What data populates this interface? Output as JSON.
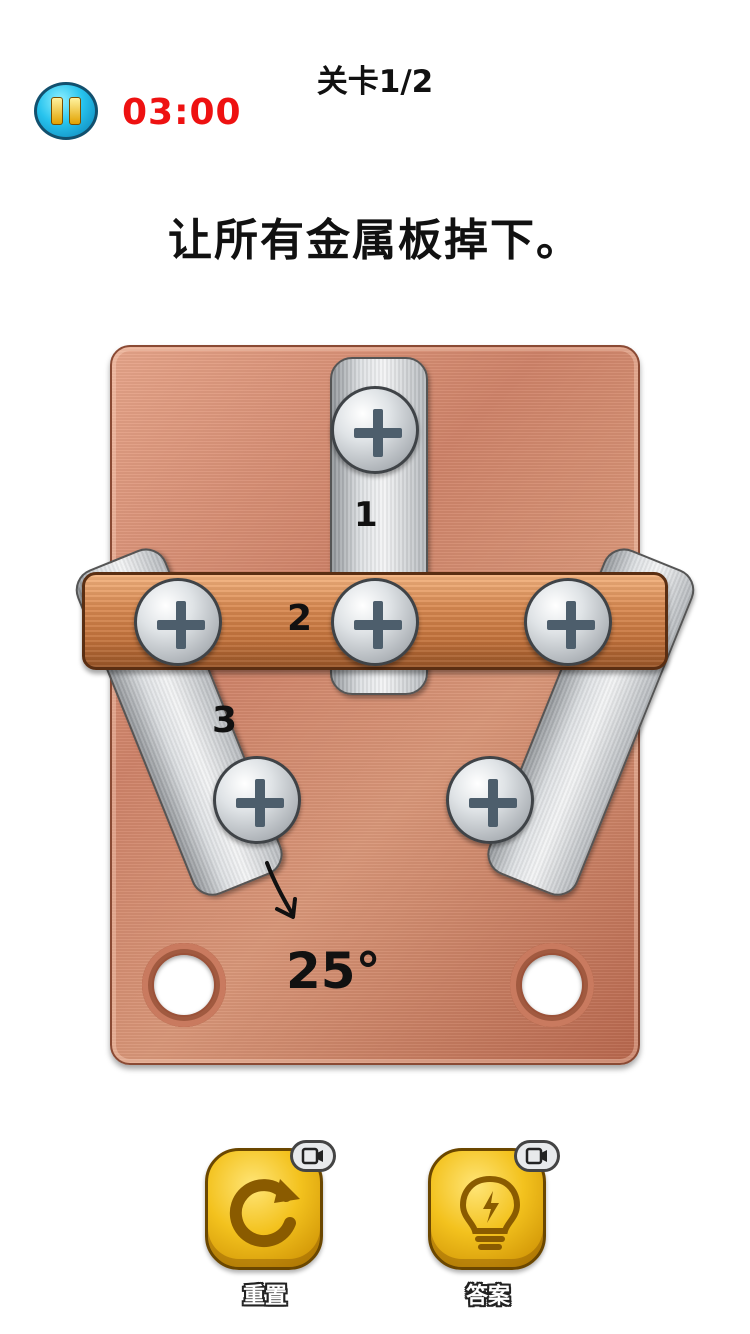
{
  "header": {
    "timer": "03:00",
    "level": "关卡1/2"
  },
  "instruction": "让所有金属板掉下。",
  "board": {
    "plate_labels": {
      "plate1": "1",
      "plate2": "2",
      "plate3": "3"
    },
    "annotation": "25°"
  },
  "buttons": {
    "reset_label": "重置",
    "answer_label": "答案"
  },
  "colors": {
    "timer": "#ee1111",
    "board_copper": "#d08a6e",
    "button_gold": "#f3c21e",
    "pause_cyan": "#27c3ee"
  },
  "icons": [
    "pause-icon",
    "refresh-icon",
    "lightbulb-icon",
    "video-ad-icon",
    "screw-icon"
  ]
}
